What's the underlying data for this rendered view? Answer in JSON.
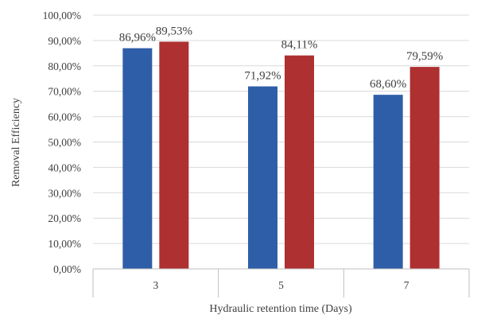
{
  "chart_data": {
    "type": "bar",
    "title": "",
    "xlabel": "Hydraulic retention time (Days)",
    "ylabel": "Removal Efficiency",
    "categories": [
      "3",
      "5",
      "7"
    ],
    "series": [
      {
        "color": "#2e5ea8",
        "values": [
          86.96,
          71.92,
          68.6
        ],
        "labels": [
          "86,96%",
          "71,92%",
          "68,60%"
        ]
      },
      {
        "color": "#ae3031",
        "values": [
          89.53,
          84.11,
          79.59
        ],
        "labels": [
          "89,53%",
          "84,11%",
          "79,59%"
        ]
      }
    ],
    "ylim": [
      0,
      100
    ],
    "yticks": [
      0,
      10,
      20,
      30,
      40,
      50,
      60,
      70,
      80,
      90,
      100
    ],
    "ytick_labels": [
      "0,00%",
      "10,00%",
      "20,00%",
      "30,00%",
      "40,00%",
      "50,00%",
      "60,00%",
      "70,00%",
      "80,00%",
      "90,00%",
      "100,00%"
    ],
    "grid": true,
    "legend": "none",
    "gridline_color": "#d9d9d9"
  }
}
